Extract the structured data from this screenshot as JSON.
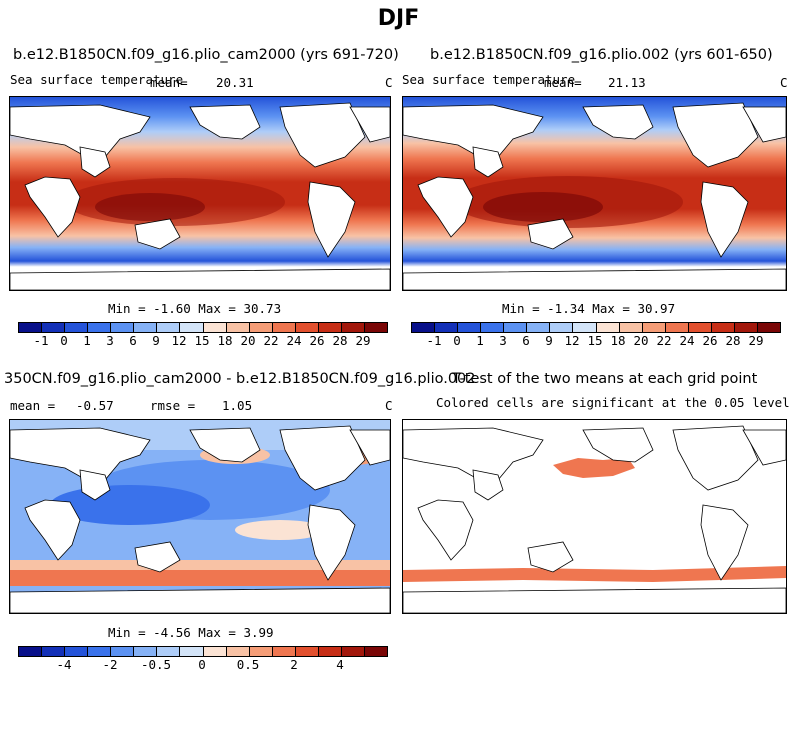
{
  "title": "DJF",
  "panels": {
    "top_left": {
      "title": "b.e12.B1850CN.f09_g16.plio_cam2000 (yrs 691-720)",
      "variable": "Sea surface temperature",
      "mean_label": "mean=",
      "mean_value": "20.31",
      "units": "C",
      "minmax": "Min =  -1.60 Max =  30.73"
    },
    "top_right": {
      "title": "b.e12.B1850CN.f09_g16.plio.002 (yrs 601-650)",
      "variable": "Sea surface temperature",
      "mean_label": "mean=",
      "mean_value": "21.13",
      "units": "C",
      "minmax": "Min =  -1.34 Max =  30.97"
    },
    "bottom_left": {
      "title": "350CN.f09_g16.plio_cam2000 - b.e12.B1850CN.f09_g16.plio.002",
      "mean_label": "mean =",
      "mean_value": "-0.57",
      "rmse_label": "rmse =",
      "rmse_value": "1.05",
      "units": "C",
      "minmax": "Min =  -4.56 Max =   3.99"
    },
    "bottom_right": {
      "title": "T-test of the two means at each grid point",
      "subtitle": "Colored cells are significant at the 0.05 level"
    }
  },
  "colorbars": {
    "sst": {
      "colors": [
        "#08108a",
        "#1330b8",
        "#2453d9",
        "#3a72eb",
        "#5c92f2",
        "#86b2f6",
        "#aecdf8",
        "#d3e4f8",
        "#fbe3d4",
        "#f8c2a5",
        "#f59d77",
        "#ef7650",
        "#e2502e",
        "#c72e16",
        "#a2170b",
        "#7a0606"
      ],
      "labels": [
        "-1",
        "0",
        "1",
        "3",
        "6",
        "9",
        "12",
        "15",
        "18",
        "20",
        "22",
        "24",
        "26",
        "28",
        "29"
      ]
    },
    "diff": {
      "colors": [
        "#08108a",
        "#1330b8",
        "#2453d9",
        "#3a72eb",
        "#5c92f2",
        "#86b2f6",
        "#aecdf8",
        "#d3e4f8",
        "#fbe3d4",
        "#f8c2a5",
        "#f59d77",
        "#ef7650",
        "#e2502e",
        "#c72e16",
        "#a2170b",
        "#7a0606"
      ],
      "labels": [
        "-4",
        "-2",
        "-0.5",
        "0",
        "0.5",
        "2",
        "4"
      ]
    }
  }
}
